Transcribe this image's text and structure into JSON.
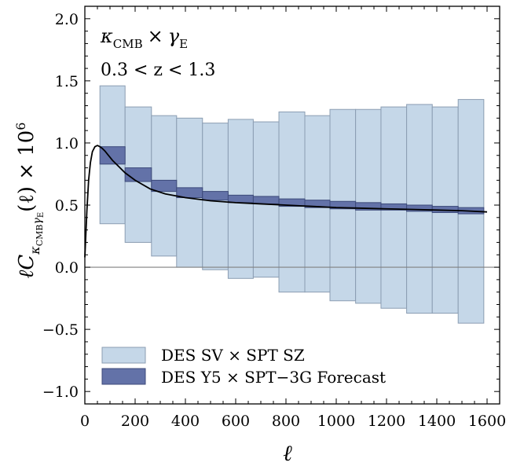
{
  "chart_data": {
    "type": "bar",
    "annotations": {
      "line1_kappa": "κ",
      "line1_kappa_sub": "CMB",
      "line1_times": "×",
      "line1_gamma": "γ",
      "line1_gamma_sub": "E",
      "line2": "0.3 < z < 1.3"
    },
    "xlabel": "ℓ",
    "ylabel": {
      "prefix": "ℓC",
      "sub": "κ",
      "subsub": "CMB",
      "sub_gamma": "γ",
      "sub_gamma_sub": "E",
      "suffix": "(ℓ) × 10",
      "exp": "6"
    },
    "xlim": [
      0,
      1650
    ],
    "ylim": [
      -1.1,
      2.1
    ],
    "x_ticks": [
      {
        "value": 0,
        "label": "0"
      },
      {
        "value": 200,
        "label": "200"
      },
      {
        "value": 400,
        "label": "400"
      },
      {
        "value": 600,
        "label": "600"
      },
      {
        "value": 800,
        "label": "800"
      },
      {
        "value": 1000,
        "label": "1000"
      },
      {
        "value": 1200,
        "label": "1200"
      },
      {
        "value": 1400,
        "label": "1400"
      },
      {
        "value": 1600,
        "label": "1600"
      }
    ],
    "y_ticks": [
      {
        "value": -1.0,
        "label": "−1.0"
      },
      {
        "value": -0.5,
        "label": "−0.5"
      },
      {
        "value": 0.0,
        "label": "0.0"
      },
      {
        "value": 0.5,
        "label": "0.5"
      },
      {
        "value": 1.0,
        "label": "1.0"
      },
      {
        "value": 1.5,
        "label": "1.5"
      },
      {
        "value": 2.0,
        "label": "2.0"
      }
    ],
    "series": [
      {
        "name": "DES SV × SPT SZ",
        "color": "#c5d7e8",
        "edge": "#8b9db2",
        "bins": [
          {
            "x0": 60,
            "x1": 160,
            "low": 0.35,
            "high": 1.46
          },
          {
            "x0": 160,
            "x1": 265,
            "low": 0.2,
            "high": 1.29
          },
          {
            "x0": 265,
            "x1": 365,
            "low": 0.09,
            "high": 1.22
          },
          {
            "x0": 365,
            "x1": 468,
            "low": 0.0,
            "high": 1.2
          },
          {
            "x0": 468,
            "x1": 570,
            "low": -0.02,
            "high": 1.16
          },
          {
            "x0": 570,
            "x1": 670,
            "low": -0.09,
            "high": 1.19
          },
          {
            "x0": 670,
            "x1": 772,
            "low": -0.08,
            "high": 1.17
          },
          {
            "x0": 772,
            "x1": 875,
            "low": -0.2,
            "high": 1.25
          },
          {
            "x0": 875,
            "x1": 975,
            "low": -0.2,
            "high": 1.22
          },
          {
            "x0": 975,
            "x1": 1077,
            "low": -0.27,
            "high": 1.27
          },
          {
            "x0": 1077,
            "x1": 1178,
            "low": -0.29,
            "high": 1.27
          },
          {
            "x0": 1178,
            "x1": 1280,
            "low": -0.33,
            "high": 1.29
          },
          {
            "x0": 1280,
            "x1": 1382,
            "low": -0.37,
            "high": 1.31
          },
          {
            "x0": 1382,
            "x1": 1485,
            "low": -0.37,
            "high": 1.29
          },
          {
            "x0": 1485,
            "x1": 1587,
            "low": -0.45,
            "high": 1.35
          }
        ]
      },
      {
        "name": "DES Y5 × SPT−3G Forecast",
        "color": "#6372a8",
        "edge": "#3c4a7a",
        "bins": [
          {
            "x0": 60,
            "x1": 160,
            "low": 0.83,
            "high": 0.97
          },
          {
            "x0": 160,
            "x1": 265,
            "low": 0.69,
            "high": 0.8
          },
          {
            "x0": 265,
            "x1": 365,
            "low": 0.61,
            "high": 0.7
          },
          {
            "x0": 365,
            "x1": 468,
            "low": 0.56,
            "high": 0.64
          },
          {
            "x0": 468,
            "x1": 570,
            "low": 0.54,
            "high": 0.61
          },
          {
            "x0": 570,
            "x1": 670,
            "low": 0.52,
            "high": 0.58
          },
          {
            "x0": 670,
            "x1": 772,
            "low": 0.51,
            "high": 0.57
          },
          {
            "x0": 772,
            "x1": 875,
            "low": 0.49,
            "high": 0.55
          },
          {
            "x0": 875,
            "x1": 975,
            "low": 0.48,
            "high": 0.54
          },
          {
            "x0": 975,
            "x1": 1077,
            "low": 0.47,
            "high": 0.53
          },
          {
            "x0": 1077,
            "x1": 1178,
            "low": 0.46,
            "high": 0.52
          },
          {
            "x0": 1178,
            "x1": 1280,
            "low": 0.46,
            "high": 0.51
          },
          {
            "x0": 1280,
            "x1": 1382,
            "low": 0.45,
            "high": 0.5
          },
          {
            "x0": 1382,
            "x1": 1485,
            "low": 0.44,
            "high": 0.49
          },
          {
            "x0": 1485,
            "x1": 1587,
            "low": 0.43,
            "high": 0.48
          }
        ]
      }
    ],
    "theory_curve": {
      "color": "#000000",
      "x": [
        0,
        8,
        15,
        22,
        30,
        40,
        50,
        60,
        70,
        80,
        90,
        110,
        130,
        160,
        200,
        260,
        320,
        400,
        500,
        600,
        700,
        800,
        900,
        1000,
        1100,
        1200,
        1300,
        1400,
        1500,
        1600
      ],
      "y": [
        0.08,
        0.45,
        0.7,
        0.84,
        0.93,
        0.97,
        0.98,
        0.97,
        0.955,
        0.935,
        0.91,
        0.86,
        0.82,
        0.76,
        0.7,
        0.63,
        0.59,
        0.56,
        0.535,
        0.52,
        0.51,
        0.5,
        0.49,
        0.48,
        0.475,
        0.47,
        0.465,
        0.46,
        0.455,
        0.445
      ]
    },
    "zero_line": {
      "y": 0.0,
      "color": "#808080"
    },
    "legend": {
      "placement": "bottom-left"
    }
  }
}
